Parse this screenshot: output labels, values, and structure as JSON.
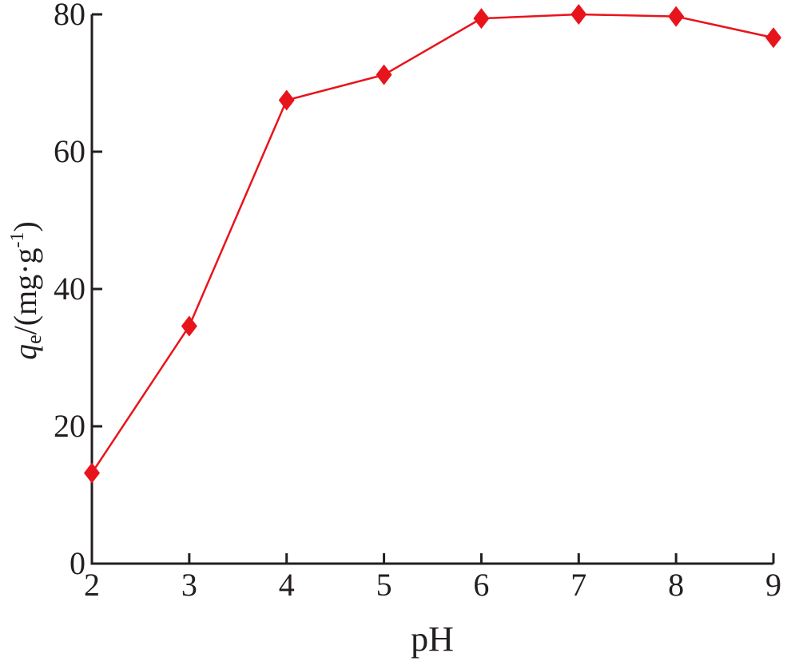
{
  "chart_data": {
    "type": "line",
    "x": [
      2,
      3,
      4,
      5,
      6,
      7,
      8,
      9
    ],
    "series": [
      {
        "values": [
          13.2,
          34.6,
          67.5,
          71.2,
          79.4,
          80.0,
          79.7,
          76.6
        ],
        "color": "#e8141b",
        "marker": "diamond"
      }
    ],
    "xlabel": "pH",
    "ylabel": {
      "main": "q",
      "subscript": "e",
      "rest": "/(mg·g",
      "superscript": "-1",
      "close": ")"
    },
    "xlim": [
      2,
      9
    ],
    "ylim": [
      0,
      80
    ],
    "xticks": [
      "2",
      "3",
      "4",
      "5",
      "6",
      "7",
      "8",
      "9"
    ],
    "yticks": [
      "0",
      "20",
      "40",
      "60",
      "80"
    ],
    "grid": false,
    "legend": "none"
  }
}
